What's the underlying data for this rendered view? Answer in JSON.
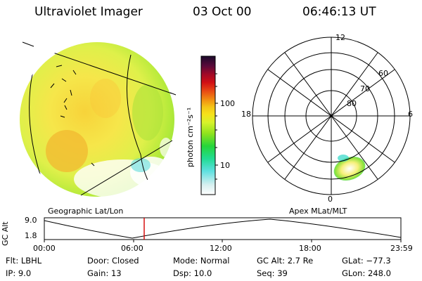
{
  "header": {
    "title": "Ultraviolet Imager",
    "date": "03 Oct 00",
    "time": "06:46:13 UT"
  },
  "panels": {
    "left_label": "Geographic Lat/Lon",
    "right_label": "Apex MLat/MLT"
  },
  "colorbar": {
    "label": "photon cm⁻²s⁻¹",
    "ticks": [
      "100",
      "10"
    ],
    "scale": "log",
    "colors": [
      "#ffffff",
      "#d7f0f0",
      "#5fe0e0",
      "#22dc92",
      "#25d53a",
      "#8ee21e",
      "#d6f22b",
      "#f6e21a",
      "#f4c717",
      "#f29412",
      "#e84814",
      "#d10f15",
      "#a00927",
      "#5a0a3a",
      "#1a0a2a"
    ]
  },
  "polar": {
    "mlt_labels": {
      "top": "12",
      "left": "18",
      "right": "6",
      "bottom": "0"
    },
    "lat_labels": [
      "60",
      "70",
      "80"
    ]
  },
  "timeline": {
    "axis_label": "GC Alt",
    "y_ticks": [
      "9.0",
      "1.8"
    ],
    "x_ticks": [
      "00:00",
      "06:00",
      "12:00",
      "18:00",
      "23:59"
    ],
    "marker_time": "06:46:13",
    "marker_color": "#d40000"
  },
  "footer": {
    "col1": [
      "Flt: LBHL",
      "IP:  9.0"
    ],
    "col2": [
      "Door: Closed",
      "Gain: 13"
    ],
    "col3": [
      "Mode: Normal",
      "Dsp:   10.0"
    ],
    "col4": [
      "GC Alt: 2.7 Re",
      "Seq: 39"
    ],
    "col5": [
      "GLat: −77.3",
      "GLon: 248.0"
    ]
  }
}
